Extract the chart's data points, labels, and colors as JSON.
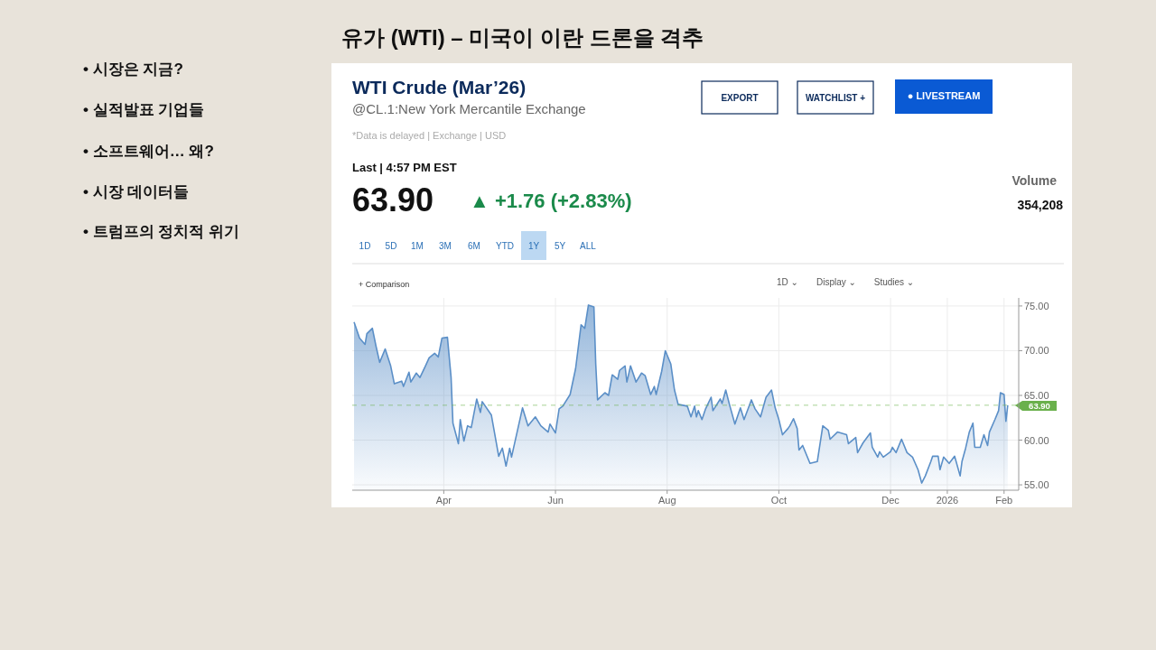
{
  "chart_data": {
    "type": "area",
    "title": "유가 (WTI) – 미국이 이란 드론을 격추",
    "subtitle": "WTI Crude (Mar’26)",
    "annotations": [
      "• 시장은 지금?",
      "• 실적발표 기업들",
      "• 소프트웨어… 왜?",
      "• 시장 데이터들",
      "• 트럼프의 정치적 위기",
      "@CL.1:New York Mercantile Exchange",
      "*Data is delayed | Exchange | USD",
      "Last | 4:57 PM EST",
      "63.90",
      "▲ +1.76 (+2.83%)",
      "Volume",
      "354,208",
      "EXPORT",
      "WATCHLIST +",
      "● LIVESTREAM",
      "1D",
      "5D",
      "1M",
      "3M",
      "6M",
      "YTD",
      "1Y",
      "5Y",
      "ALL",
      "+ Comparison",
      "1D ⌄",
      "Display ⌄",
      "Studies ⌄"
    ],
    "x": [
      "2025-02-11",
      "2025-02-14",
      "2025-02-17",
      "2025-02-18",
      "2025-02-21",
      "2025-02-23",
      "2025-02-25",
      "2025-02-28",
      "2025-03-03",
      "2025-03-05",
      "2025-03-09",
      "2025-03-10",
      "2025-03-13",
      "2025-03-14",
      "2025-03-17",
      "2025-03-19",
      "2025-03-22",
      "2025-03-24",
      "2025-03-27",
      "2025-03-29",
      "2025-03-31",
      "2025-04-03",
      "2025-04-05",
      "2025-04-06",
      "2025-04-09",
      "2025-04-10",
      "2025-04-12",
      "2025-04-14",
      "2025-04-16",
      "2025-04-19",
      "2025-04-21",
      "2025-04-22",
      "2025-04-27",
      "2025-05-01",
      "2025-05-03",
      "2025-05-05",
      "2025-05-07",
      "2025-05-08",
      "2025-05-14",
      "2025-05-17",
      "2025-05-21",
      "2025-05-24",
      "2025-05-28",
      "2025-05-29",
      "2025-06-01",
      "2025-06-03",
      "2025-06-05",
      "2025-06-09",
      "2025-06-12",
      "2025-06-15",
      "2025-06-17",
      "2025-06-19",
      "2025-06-22",
      "2025-06-23",
      "2025-06-24",
      "2025-06-28",
      "2025-06-30",
      "2025-07-02",
      "2025-07-05",
      "2025-07-06",
      "2025-07-09",
      "2025-07-10",
      "2025-07-12",
      "2025-07-15",
      "2025-07-18",
      "2025-07-20",
      "2025-07-23",
      "2025-07-25",
      "2025-07-26",
      "2025-07-29",
      "2025-07-31",
      "2025-08-03",
      "2025-08-05",
      "2025-08-07",
      "2025-08-12",
      "2025-08-14",
      "2025-08-16",
      "2025-08-17",
      "2025-08-18",
      "2025-08-20",
      "2025-08-22",
      "2025-08-25",
      "2025-08-26",
      "2025-08-30",
      "2025-08-31",
      "2025-09-02",
      "2025-09-04",
      "2025-09-07",
      "2025-09-10",
      "2025-09-12",
      "2025-09-16",
      "2025-09-18",
      "2025-09-21",
      "2025-09-24",
      "2025-09-27",
      "2025-09-29",
      "2025-10-01",
      "2025-10-03",
      "2025-10-06",
      "2025-10-07",
      "2025-10-09",
      "2025-10-11",
      "2025-10-12",
      "2025-10-14",
      "2025-10-18",
      "2025-10-22",
      "2025-10-25",
      "2025-10-28",
      "2025-10-29",
      "2025-11-02",
      "2025-11-07",
      "2025-11-08",
      "2025-11-12",
      "2025-11-13",
      "2025-11-16",
      "2025-11-20",
      "2025-11-21",
      "2025-11-24",
      "2025-11-25",
      "2025-11-27",
      "2025-12-01",
      "2025-12-02",
      "2025-12-04",
      "2025-12-07",
      "2025-12-10",
      "2025-12-13",
      "2025-12-16",
      "2025-12-18",
      "2025-12-20",
      "2025-12-23",
      "2025-12-24",
      "2025-12-27",
      "2025-12-28",
      "2025-12-30",
      "2026-01-02",
      "2026-01-05",
      "2026-01-08",
      "2026-01-09",
      "2026-01-11",
      "2026-01-13",
      "2026-01-15",
      "2026-01-16",
      "2026-01-19",
      "2026-01-21",
      "2026-01-23",
      "2026-01-24",
      "2026-01-27",
      "2026-01-29",
      "2026-01-30",
      "2026-02-01",
      "2026-02-02",
      "2026-02-03"
    ],
    "series": [
      {
        "color": "#5b8fc7",
        "values": [
          73.2,
          71.4,
          70.7,
          71.9,
          72.5,
          70.5,
          68.7,
          70.2,
          68.3,
          66.3,
          66.6,
          66.0,
          67.6,
          66.5,
          67.5,
          67.0,
          68.3,
          69.2,
          69.7,
          69.3,
          71.4,
          71.5,
          67.0,
          61.9,
          59.6,
          62.3,
          59.9,
          61.6,
          61.4,
          64.6,
          63.1,
          64.3,
          62.8,
          58.2,
          59.1,
          57.1,
          59.1,
          58.1,
          63.6,
          61.6,
          62.6,
          61.6,
          60.9,
          61.8,
          60.8,
          63.5,
          63.8,
          65.1,
          68.0,
          72.9,
          72.5,
          75.1,
          74.9,
          68.5,
          64.5,
          65.3,
          65.0,
          67.3,
          66.8,
          67.8,
          68.3,
          66.5,
          68.3,
          66.5,
          67.5,
          67.2,
          65.1,
          66.0,
          65.1,
          67.7,
          70.0,
          68.5,
          65.6,
          64.0,
          63.8,
          62.6,
          63.8,
          62.6,
          63.3,
          62.3,
          63.5,
          64.8,
          63.3,
          64.6,
          64.1,
          65.6,
          64.0,
          61.8,
          63.6,
          62.3,
          64.5,
          63.5,
          62.6,
          64.8,
          65.6,
          63.6,
          62.3,
          60.6,
          61.3,
          61.6,
          62.4,
          61.3,
          58.9,
          59.4,
          57.4,
          57.6,
          61.6,
          61.1,
          60.1,
          60.9,
          60.6,
          59.6,
          60.3,
          58.6,
          59.7,
          60.8,
          59.2,
          58.1,
          58.7,
          58.1,
          58.7,
          59.2,
          58.6,
          60.1,
          58.6,
          58.1,
          56.7,
          55.2,
          56.0,
          57.6,
          58.2,
          58.2,
          56.7,
          58.1,
          57.4,
          58.2,
          56.0,
          57.6,
          59.1,
          60.9,
          61.9,
          59.2,
          59.2,
          60.6,
          59.4,
          60.9,
          62.3,
          63.3,
          65.3,
          65.1,
          62.1,
          63.9
        ]
      }
    ],
    "xlim": [
      "2025-02-10",
      "2026-02-09"
    ],
    "xticks": [
      {
        "value": "2025-04-01",
        "label": "Apr"
      },
      {
        "value": "2025-06-01",
        "label": "Jun"
      },
      {
        "value": "2025-08-01",
        "label": "Aug"
      },
      {
        "value": "2025-10-01",
        "label": "Oct"
      },
      {
        "value": "2025-12-01",
        "label": "Dec"
      },
      {
        "value": "2026-01-01",
        "label": "2026"
      },
      {
        "value": "2026-02-01",
        "label": "Feb"
      }
    ],
    "ylim": [
      54.4,
      75.9
    ],
    "yticks": [
      {
        "value": 55,
        "label": "55.00"
      },
      {
        "value": 60,
        "label": "60.00"
      },
      {
        "value": 65,
        "label": "65.00"
      },
      {
        "value": 70,
        "label": "70.00"
      },
      {
        "value": 75,
        "label": "75.00"
      }
    ],
    "grid": true,
    "ref_lines": [
      {
        "axis": "y",
        "value": 63.9,
        "label": "63.90",
        "color": "#6ab04c",
        "line_style": "dashed"
      }
    ]
  }
}
